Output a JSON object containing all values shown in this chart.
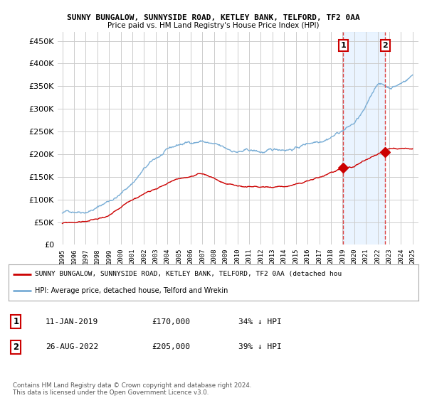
{
  "title1": "SUNNY BUNGALOW, SUNNYSIDE ROAD, KETLEY BANK, TELFORD, TF2 0AA",
  "title2": "Price paid vs. HM Land Registry's House Price Index (HPI)",
  "ylim": [
    0,
    470000
  ],
  "yticks": [
    0,
    50000,
    100000,
    150000,
    200000,
    250000,
    300000,
    350000,
    400000,
    450000
  ],
  "ytick_labels": [
    "£0",
    "£50K",
    "£100K",
    "£150K",
    "£200K",
    "£250K",
    "£300K",
    "£350K",
    "£400K",
    "£450K"
  ],
  "sale1_year": 2019.05,
  "sale1_price": 170000,
  "sale2_year": 2022.65,
  "sale2_price": 205000,
  "legend_red_label": "SUNNY BUNGALOW, SUNNYSIDE ROAD, KETLEY BANK, TELFORD, TF2 0AA (detached hou",
  "legend_blue_label": "HPI: Average price, detached house, Telford and Wrekin",
  "table_row1": [
    "1",
    "11-JAN-2019",
    "£170,000",
    "34% ↓ HPI"
  ],
  "table_row2": [
    "2",
    "26-AUG-2022",
    "£205,000",
    "39% ↓ HPI"
  ],
  "footnote": "Contains HM Land Registry data © Crown copyright and database right 2024.\nThis data is licensed under the Open Government Licence v3.0.",
  "bg_color": "#ffffff",
  "grid_color": "#cccccc",
  "red_line_color": "#cc0000",
  "blue_line_color": "#7aaed6",
  "vline_color": "#dd4444",
  "shade_color": "#ddeeff",
  "hpi_pts_x": [
    1995,
    1996,
    1997,
    1998,
    1999,
    2000,
    2001,
    2002,
    2003,
    2004,
    2005,
    2006,
    2007,
    2008,
    2009,
    2010,
    2011,
    2012,
    2013,
    2014,
    2015,
    2016,
    2017,
    2018,
    2019,
    2020,
    2021,
    2022,
    2023,
    2024,
    2025
  ],
  "hpi_pts_y": [
    70000,
    75000,
    80000,
    90000,
    105000,
    120000,
    145000,
    175000,
    195000,
    210000,
    220000,
    225000,
    230000,
    220000,
    205000,
    200000,
    200000,
    195000,
    195000,
    200000,
    205000,
    215000,
    225000,
    240000,
    255000,
    270000,
    300000,
    355000,
    345000,
    355000,
    375000
  ],
  "red_pts_x": [
    1995,
    1996,
    1997,
    1998,
    1999,
    2000,
    2001,
    2002,
    2003,
    2004,
    2005,
    2006,
    2007,
    2008,
    2009,
    2010,
    2011,
    2012,
    2013,
    2014,
    2015,
    2016,
    2017,
    2018,
    2019.05,
    2020,
    2021,
    2022.65,
    2023,
    2024,
    2025
  ],
  "red_pts_y": [
    47000,
    49000,
    52000,
    57000,
    65000,
    78000,
    95000,
    110000,
    125000,
    138000,
    148000,
    153000,
    155000,
    148000,
    135000,
    130000,
    128000,
    127000,
    128000,
    130000,
    135000,
    140000,
    148000,
    158000,
    170000,
    175000,
    185000,
    205000,
    207000,
    210000,
    212000
  ],
  "noise_seed_blue": 42,
  "noise_seed_red": 99,
  "noise_amp_blue": 4000,
  "noise_amp_red": 2500
}
